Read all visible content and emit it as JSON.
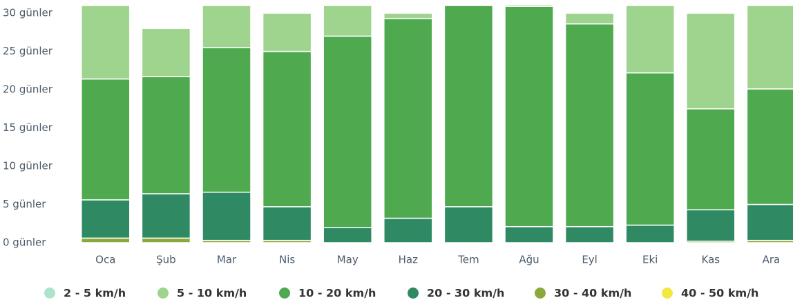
{
  "chart_data": {
    "type": "stacked_bar",
    "categories": [
      "Oca",
      "Şub",
      "Mar",
      "Nis",
      "May",
      "Haz",
      "Tem",
      "Ağu",
      "Eyl",
      "Eki",
      "Kas",
      "Ara"
    ],
    "series": [
      {
        "name": "2 - 5 km/h",
        "color": "#aee3cc",
        "values": [
          0,
          0,
          0,
          0,
          0,
          0,
          0,
          0,
          0,
          0,
          0,
          0
        ]
      },
      {
        "name": "5 - 10 km/h",
        "color": "#9fd48e",
        "values": [
          9.6,
          6.3,
          5.5,
          5,
          4,
          0.7,
          0,
          0.2,
          1.4,
          8.8,
          12.5,
          10.9
        ]
      },
      {
        "name": "10 - 20 km/h",
        "color": "#4fa94f",
        "values": [
          15.8,
          15.3,
          18.9,
          20.3,
          25,
          26.1,
          26.3,
          28.8,
          26.5,
          19.9,
          13.2,
          15.1
        ]
      },
      {
        "name": "20 - 30 km/h",
        "color": "#2f8a64",
        "values": [
          5,
          5.8,
          6.3,
          4.4,
          2,
          3.2,
          4.7,
          2.1,
          2.1,
          2.3,
          4.1,
          4.7
        ]
      },
      {
        "name": "30 - 40 km/h",
        "color": "#8ba93a",
        "values": [
          0.6,
          0.6,
          0.3,
          0.3,
          0,
          0,
          0,
          0,
          0,
          0,
          0.2,
          0.3
        ]
      },
      {
        "name": "40 - 50 km/h",
        "color": "#f2e842",
        "values": [
          0,
          0,
          0,
          0,
          0,
          0,
          0,
          0,
          0,
          0,
          0,
          0
        ]
      }
    ],
    "ylim": [
      0,
      31
    ],
    "yticks": [
      {
        "value": 0,
        "label": "0 günler"
      },
      {
        "value": 5,
        "label": "5 günler"
      },
      {
        "value": 10,
        "label": "10 günler"
      },
      {
        "value": 15,
        "label": "15 günler"
      },
      {
        "value": 20,
        "label": "20 günler"
      },
      {
        "value": 25,
        "label": "25 günler"
      },
      {
        "value": 30,
        "label": "30 günler"
      }
    ],
    "legend": "bottom"
  }
}
